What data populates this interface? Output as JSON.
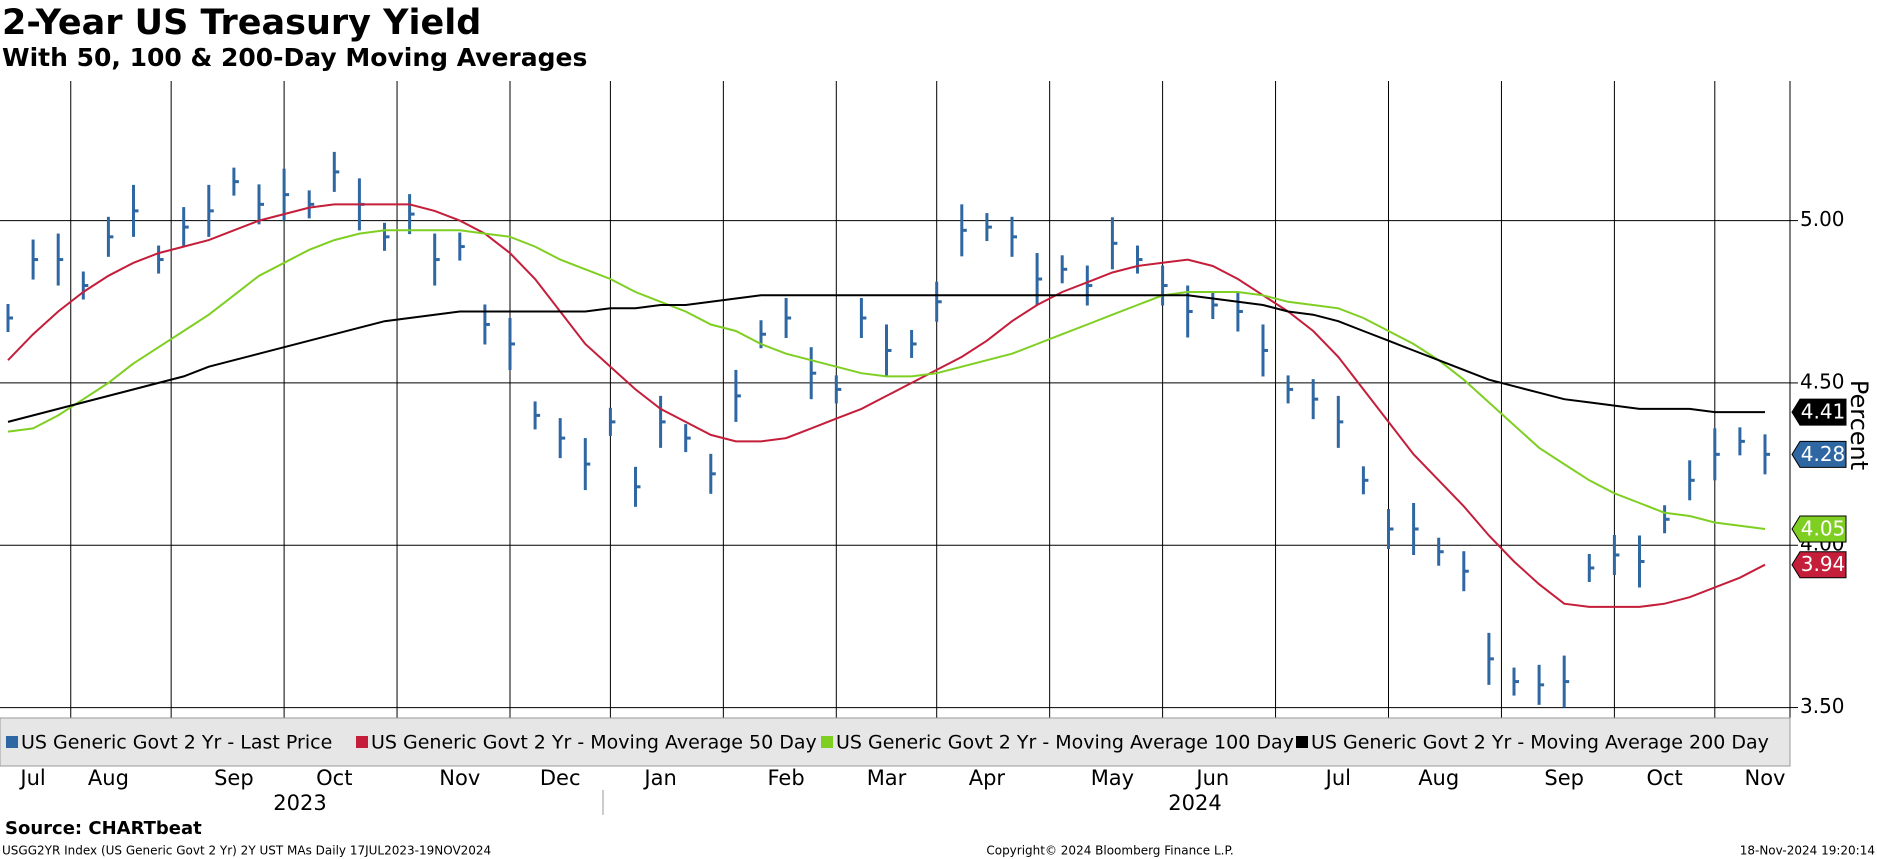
{
  "chart_data": {
    "type": "line",
    "title": "2-Year US Treasury Yield",
    "subtitle": "With 50, 100 & 200-Day Moving Averages",
    "y_label": "Percent",
    "source": "Source: CHARTbeat",
    "footer_left": "USGG2YR Index (US Generic Govt 2 Yr) 2Y UST MAs  Daily 17JUL2023-19NOV2024",
    "footer_center": "Copyright© 2024 Bloomberg Finance L.P.",
    "footer_right": "18-Nov-2024 19:20:14",
    "years": [
      "2023",
      "2024"
    ],
    "categories": [
      null,
      "Jul",
      null,
      null,
      "Aug",
      null,
      null,
      null,
      null,
      "Sep",
      null,
      null,
      null,
      "Oct",
      null,
      null,
      null,
      null,
      "Nov",
      null,
      null,
      null,
      "Dec",
      null,
      null,
      null,
      "Jan",
      null,
      null,
      null,
      null,
      "Feb",
      null,
      null,
      null,
      "Mar",
      null,
      null,
      null,
      "Apr",
      null,
      null,
      null,
      null,
      "May",
      null,
      null,
      null,
      "Jun",
      null,
      null,
      null,
      null,
      "Jul",
      null,
      null,
      null,
      "Aug",
      null,
      null,
      null,
      null,
      "Sep",
      null,
      null,
      null,
      "Oct",
      null,
      null,
      null,
      "Nov"
    ],
    "series": [
      {
        "name": "US Generic Govt 2 Yr - Last Price",
        "color": "#2f67a3",
        "marker": "bar",
        "values": [
          4.7,
          4.88,
          4.88,
          4.8,
          4.95,
          5.03,
          4.88,
          4.98,
          5.03,
          5.12,
          5.05,
          5.08,
          5.05,
          5.15,
          5.05,
          4.95,
          5.02,
          4.88,
          4.92,
          4.68,
          4.62,
          4.4,
          4.33,
          4.25,
          4.38,
          4.18,
          4.38,
          4.33,
          4.22,
          4.46,
          4.65,
          4.7,
          4.53,
          4.48,
          4.7,
          4.6,
          4.62,
          4.75,
          4.97,
          4.98,
          4.95,
          4.82,
          4.85,
          4.8,
          4.93,
          4.88,
          4.8,
          4.72,
          4.74,
          4.72,
          4.6,
          4.48,
          4.45,
          4.38,
          4.2,
          4.05,
          4.05,
          3.98,
          3.92,
          3.65,
          3.58,
          3.57,
          3.58,
          3.93,
          3.97,
          3.95,
          4.08,
          4.2,
          4.28,
          4.32,
          4.28
        ]
      },
      {
        "name": "US Generic Govt 2 Yr - Moving Average 50 Day",
        "color": "#c41e3a",
        "marker": "line",
        "values": [
          4.57,
          4.65,
          4.72,
          4.78,
          4.83,
          4.87,
          4.9,
          4.92,
          4.94,
          4.97,
          5.0,
          5.02,
          5.04,
          5.05,
          5.05,
          5.05,
          5.05,
          5.03,
          5.0,
          4.96,
          4.9,
          4.82,
          4.72,
          4.62,
          4.55,
          4.48,
          4.42,
          4.38,
          4.34,
          4.32,
          4.32,
          4.33,
          4.36,
          4.39,
          4.42,
          4.46,
          4.5,
          4.54,
          4.58,
          4.63,
          4.69,
          4.74,
          4.78,
          4.81,
          4.84,
          4.86,
          4.87,
          4.88,
          4.86,
          4.82,
          4.77,
          4.72,
          4.66,
          4.58,
          4.48,
          4.38,
          4.28,
          4.2,
          4.12,
          4.03,
          3.95,
          3.88,
          3.82,
          3.81,
          3.81,
          3.81,
          3.82,
          3.84,
          3.87,
          3.9,
          3.94
        ]
      },
      {
        "name": "US Generic Govt 2 Yr - Moving Average 100 Day",
        "color": "#7fcf22",
        "marker": "line",
        "values": [
          4.35,
          4.36,
          4.4,
          4.45,
          4.5,
          4.56,
          4.61,
          4.66,
          4.71,
          4.77,
          4.83,
          4.87,
          4.91,
          4.94,
          4.96,
          4.97,
          4.97,
          4.97,
          4.97,
          4.96,
          4.95,
          4.92,
          4.88,
          4.85,
          4.82,
          4.78,
          4.75,
          4.72,
          4.68,
          4.66,
          4.62,
          4.59,
          4.57,
          4.55,
          4.53,
          4.52,
          4.52,
          4.53,
          4.55,
          4.57,
          4.59,
          4.62,
          4.65,
          4.68,
          4.71,
          4.74,
          4.77,
          4.78,
          4.78,
          4.78,
          4.77,
          4.75,
          4.74,
          4.73,
          4.7,
          4.66,
          4.62,
          4.57,
          4.51,
          4.44,
          4.37,
          4.3,
          4.25,
          4.2,
          4.16,
          4.13,
          4.1,
          4.09,
          4.07,
          4.06,
          4.05
        ]
      },
      {
        "name": "US Generic Govt 2 Yr - Moving Average 200 Day",
        "color": "#000000",
        "marker": "line",
        "values": [
          4.38,
          4.4,
          4.42,
          4.44,
          4.46,
          4.48,
          4.5,
          4.52,
          4.55,
          4.57,
          4.59,
          4.61,
          4.63,
          4.65,
          4.67,
          4.69,
          4.7,
          4.71,
          4.72,
          4.72,
          4.72,
          4.72,
          4.72,
          4.72,
          4.73,
          4.73,
          4.74,
          4.74,
          4.75,
          4.76,
          4.77,
          4.77,
          4.77,
          4.77,
          4.77,
          4.77,
          4.77,
          4.77,
          4.77,
          4.77,
          4.77,
          4.77,
          4.77,
          4.77,
          4.77,
          4.77,
          4.77,
          4.77,
          4.76,
          4.75,
          4.74,
          4.72,
          4.71,
          4.69,
          4.66,
          4.63,
          4.6,
          4.57,
          4.54,
          4.51,
          4.49,
          4.47,
          4.45,
          4.44,
          4.43,
          4.42,
          4.42,
          4.42,
          4.41,
          4.41,
          4.41
        ]
      }
    ],
    "ylim": [
      3.32,
      5.43
    ],
    "yticks": [
      {
        "value": 3.5,
        "label": "3.50"
      },
      {
        "value": 4.0,
        "label": "4.00"
      },
      {
        "value": 4.5,
        "label": "4.50"
      },
      {
        "value": 5.0,
        "label": "5.00"
      }
    ],
    "grid": true
  }
}
